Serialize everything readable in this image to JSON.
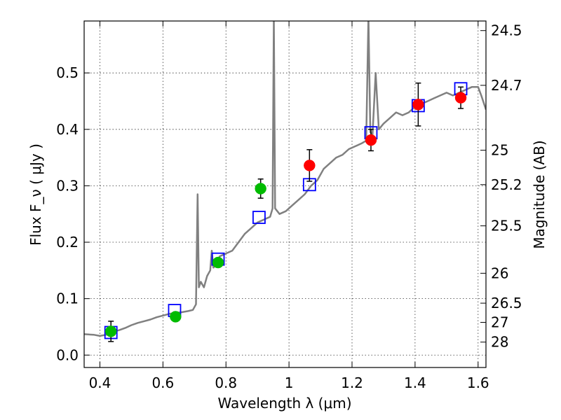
{
  "chart_data": {
    "type": "scatter",
    "xlabel": "Wavelength  λ (μm)",
    "ylabel": "Flux  F_ν  ( μJy )",
    "y2label": "Magnitude (AB)",
    "xlim": [
      0.35,
      1.625
    ],
    "ylim": [
      -0.022,
      0.592
    ],
    "grid": true,
    "x_ticks": [
      0.4,
      0.6,
      0.8,
      1.0,
      1.2,
      1.4,
      1.6
    ],
    "x_tick_labels": [
      "0.4",
      "0.6",
      "0.8",
      "1",
      "1.2",
      "1.4",
      "1.6"
    ],
    "y_ticks": [
      0.0,
      0.1,
      0.2,
      0.3,
      0.4,
      0.5
    ],
    "y_tick_labels": [
      "0.0",
      "0.1",
      "0.2",
      "0.3",
      "0.4",
      "0.5"
    ],
    "y2_ticks": [
      {
        "label": "24.5",
        "flux": 0.575
      },
      {
        "label": "24.7",
        "flux": 0.478
      },
      {
        "label": "25",
        "flux": 0.363
      },
      {
        "label": "25.2",
        "flux": 0.302
      },
      {
        "label": "25.5",
        "flux": 0.229
      },
      {
        "label": "26",
        "flux": 0.145
      },
      {
        "label": "26.5",
        "flux": 0.092
      },
      {
        "label": "27",
        "flux": 0.058
      },
      {
        "label": "28",
        "flux": 0.023
      }
    ],
    "series": [
      {
        "kind": "line",
        "color": "#808080",
        "points": [
          [
            0.35,
            0.037
          ],
          [
            0.38,
            0.036
          ],
          [
            0.4,
            0.034
          ],
          [
            0.42,
            0.036
          ],
          [
            0.44,
            0.041
          ],
          [
            0.46,
            0.044
          ],
          [
            0.48,
            0.048
          ],
          [
            0.5,
            0.053
          ],
          [
            0.52,
            0.057
          ],
          [
            0.54,
            0.06
          ],
          [
            0.56,
            0.063
          ],
          [
            0.58,
            0.067
          ],
          [
            0.6,
            0.07
          ],
          [
            0.62,
            0.073
          ],
          [
            0.64,
            0.075
          ],
          [
            0.66,
            0.076
          ],
          [
            0.68,
            0.078
          ],
          [
            0.695,
            0.08
          ],
          [
            0.705,
            0.09
          ],
          [
            0.71,
            0.285
          ],
          [
            0.714,
            0.12
          ],
          [
            0.72,
            0.13
          ],
          [
            0.73,
            0.12
          ],
          [
            0.74,
            0.14
          ],
          [
            0.75,
            0.15
          ],
          [
            0.755,
            0.185
          ],
          [
            0.76,
            0.155
          ],
          [
            0.77,
            0.16
          ],
          [
            0.78,
            0.175
          ],
          [
            0.8,
            0.18
          ],
          [
            0.82,
            0.185
          ],
          [
            0.84,
            0.2
          ],
          [
            0.86,
            0.215
          ],
          [
            0.88,
            0.225
          ],
          [
            0.9,
            0.235
          ],
          [
            0.92,
            0.24
          ],
          [
            0.94,
            0.245
          ],
          [
            0.948,
            0.26
          ],
          [
            0.952,
            0.6
          ],
          [
            0.956,
            0.26
          ],
          [
            0.97,
            0.25
          ],
          [
            0.99,
            0.255
          ],
          [
            1.01,
            0.265
          ],
          [
            1.03,
            0.275
          ],
          [
            1.05,
            0.285
          ],
          [
            1.07,
            0.3
          ],
          [
            1.09,
            0.31
          ],
          [
            1.11,
            0.33
          ],
          [
            1.13,
            0.34
          ],
          [
            1.15,
            0.35
          ],
          [
            1.17,
            0.355
          ],
          [
            1.19,
            0.365
          ],
          [
            1.21,
            0.37
          ],
          [
            1.23,
            0.375
          ],
          [
            1.245,
            0.38
          ],
          [
            1.252,
            0.6
          ],
          [
            1.258,
            0.395
          ],
          [
            1.265,
            0.39
          ],
          [
            1.275,
            0.5
          ],
          [
            1.285,
            0.4
          ],
          [
            1.3,
            0.41
          ],
          [
            1.32,
            0.42
          ],
          [
            1.34,
            0.43
          ],
          [
            1.36,
            0.425
          ],
          [
            1.38,
            0.43
          ],
          [
            1.4,
            0.44
          ],
          [
            1.42,
            0.445
          ],
          [
            1.44,
            0.45
          ],
          [
            1.46,
            0.455
          ],
          [
            1.48,
            0.46
          ],
          [
            1.5,
            0.465
          ],
          [
            1.52,
            0.46
          ],
          [
            1.54,
            0.465
          ],
          [
            1.56,
            0.47
          ],
          [
            1.58,
            0.475
          ],
          [
            1.6,
            0.475
          ],
          [
            1.61,
            0.46
          ],
          [
            1.625,
            0.435
          ]
        ]
      },
      {
        "kind": "box",
        "color": "#0000ff",
        "points": [
          [
            0.435,
            0.04
          ],
          [
            0.637,
            0.079
          ],
          [
            0.775,
            0.17
          ],
          [
            0.905,
            0.244
          ],
          [
            1.065,
            0.302
          ],
          [
            1.26,
            0.394
          ],
          [
            1.41,
            0.442
          ],
          [
            1.545,
            0.472
          ]
        ]
      },
      {
        "kind": "errorbar",
        "color": "#00bb00",
        "points": [
          {
            "x": 0.435,
            "y": 0.042,
            "err": 0.018
          },
          {
            "x": 0.64,
            "y": 0.068,
            "err": 0.007
          },
          {
            "x": 0.775,
            "y": 0.164,
            "err": 0.0
          },
          {
            "x": 0.91,
            "y": 0.295,
            "err": 0.017
          }
        ]
      },
      {
        "kind": "errorbar",
        "color": "#ff0000",
        "points": [
          {
            "x": 1.065,
            "y": 0.336,
            "err": 0.028
          },
          {
            "x": 1.26,
            "y": 0.381,
            "err": 0.019
          },
          {
            "x": 1.41,
            "y": 0.444,
            "err": 0.038
          },
          {
            "x": 1.545,
            "y": 0.456,
            "err": 0.019
          }
        ]
      }
    ]
  }
}
